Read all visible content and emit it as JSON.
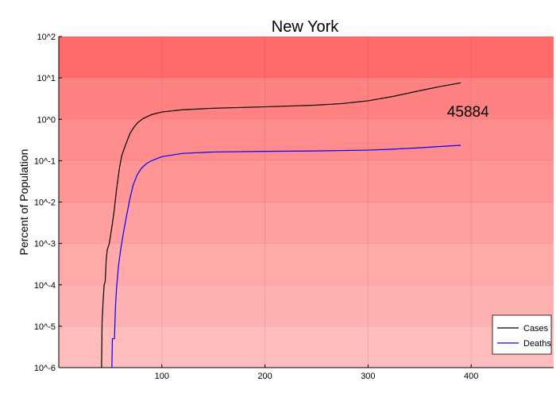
{
  "chart_data": {
    "type": "line",
    "title": "New York",
    "xlabel": "",
    "ylabel": "Percent of Population",
    "yscale": "log",
    "xlim": [
      0,
      480
    ],
    "ylim_log10": [
      -6,
      2
    ],
    "x_ticks": [
      100,
      200,
      300,
      400
    ],
    "x_tick_labels": [
      "100",
      "200",
      "300",
      "400"
    ],
    "y_ticks_log10": [
      -6,
      -5,
      -4,
      -3,
      -2,
      -1,
      0,
      1,
      2
    ],
    "y_tick_labels": [
      "10^-6",
      "10^-5",
      "10^-4",
      "10^-3",
      "10^-2",
      "10^-1",
      "10^0",
      "10^1",
      "10^2"
    ],
    "grid": true,
    "legend_position": "bottom-right",
    "background_bands": [
      "#ffbcbc",
      "#ffb2b2",
      "#ffa9a9",
      "#ff9f9f",
      "#ff9595",
      "#ff8c8c",
      "#ff8282",
      "#ff6a6a"
    ],
    "annotation": {
      "text": "45884",
      "x": 397,
      "y": 1.5
    },
    "series": [
      {
        "name": "Cases",
        "color": "#000000",
        "points": [
          [
            41.5,
            1e-06
          ],
          [
            42,
            1.2e-05
          ],
          [
            43,
            4e-05
          ],
          [
            44,
            0.0001
          ],
          [
            45,
            0.00012
          ],
          [
            46,
            0.0004
          ],
          [
            47,
            0.0007
          ],
          [
            49,
            0.001
          ],
          [
            52,
            0.003
          ],
          [
            54,
            0.007
          ],
          [
            56,
            0.02
          ],
          [
            59,
            0.07
          ],
          [
            61,
            0.13
          ],
          [
            65,
            0.25
          ],
          [
            69,
            0.45
          ],
          [
            73,
            0.65
          ],
          [
            77,
            0.85
          ],
          [
            82,
            1.05
          ],
          [
            90,
            1.3
          ],
          [
            100,
            1.5
          ],
          [
            120,
            1.7
          ],
          [
            150,
            1.85
          ],
          [
            200,
            2.0
          ],
          [
            250,
            2.2
          ],
          [
            275,
            2.4
          ],
          [
            300,
            2.8
          ],
          [
            325,
            3.6
          ],
          [
            350,
            4.9
          ],
          [
            370,
            6.2
          ],
          [
            390,
            7.6
          ]
        ]
      },
      {
        "name": "Deaths",
        "color": "#0000ff",
        "points": [
          [
            51.5,
            1e-06
          ],
          [
            52,
            5e-06
          ],
          [
            54,
            5e-06
          ],
          [
            55,
            3e-05
          ],
          [
            56,
            8e-05
          ],
          [
            58,
            0.0003
          ],
          [
            60,
            0.0007
          ],
          [
            63,
            0.002
          ],
          [
            66,
            0.005
          ],
          [
            69,
            0.012
          ],
          [
            72,
            0.025
          ],
          [
            76,
            0.045
          ],
          [
            80,
            0.065
          ],
          [
            85,
            0.085
          ],
          [
            90,
            0.1
          ],
          [
            100,
            0.125
          ],
          [
            120,
            0.15
          ],
          [
            150,
            0.162
          ],
          [
            200,
            0.168
          ],
          [
            250,
            0.172
          ],
          [
            300,
            0.18
          ],
          [
            325,
            0.19
          ],
          [
            350,
            0.205
          ],
          [
            370,
            0.22
          ],
          [
            390,
            0.235
          ]
        ]
      }
    ]
  }
}
